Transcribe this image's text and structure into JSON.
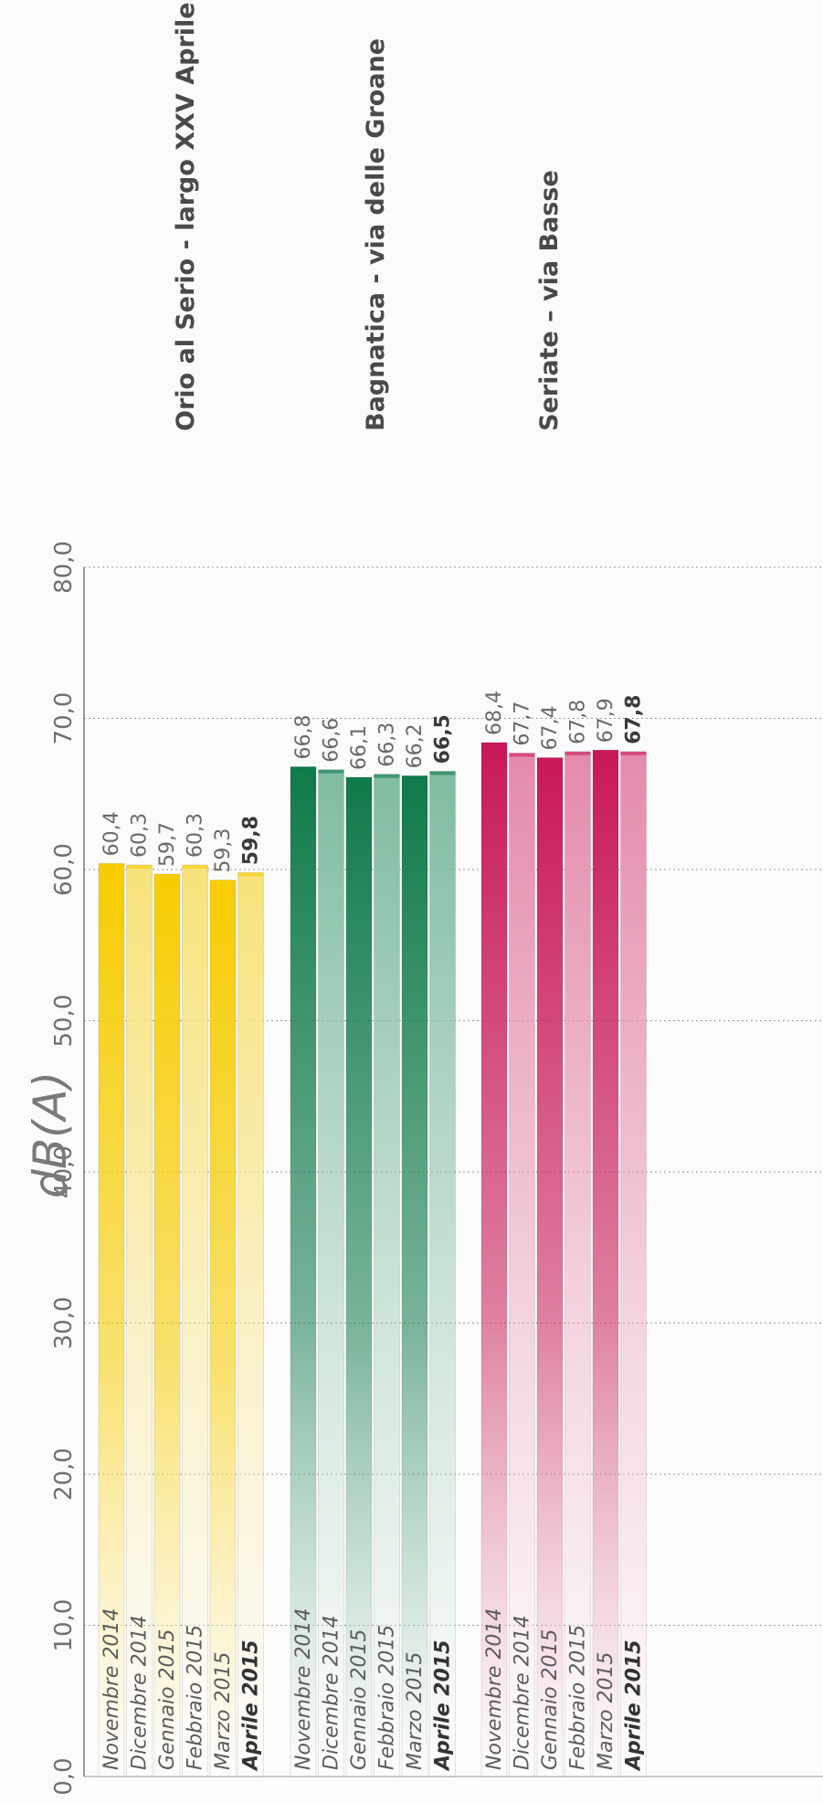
{
  "chart_data": {
    "type": "bar",
    "orientation": "horizontal",
    "ylabel": "dB(A)",
    "ylim": [
      0,
      80
    ],
    "ticks": [
      "0,0",
      "10,0",
      "20,0",
      "30,0",
      "40,0",
      "50,0",
      "60,0",
      "70,0",
      "80,0"
    ],
    "grid": true,
    "categories": [
      "Novembre 2014",
      "Dicembre 2014",
      "Gennaio 2015",
      "Febbraio 2015",
      "Marzo 2015",
      "Aprile 2015"
    ],
    "highlight_category": "Aprile 2015",
    "series": [
      {
        "name": "Orio al Serio - largo XXV Aprile",
        "values": [
          60.4,
          60.3,
          59.7,
          60.3,
          59.3,
          59.8
        ],
        "labels": [
          "60,4",
          "60,3",
          "59,7",
          "60,3",
          "59,3",
          "59,8"
        ],
        "colors": {
          "dark": "#f7cc00",
          "light": "#f7e27a"
        }
      },
      {
        "name": "Bagnatica - via delle Groane",
        "values": [
          66.8,
          66.6,
          66.1,
          66.3,
          66.2,
          66.5
        ],
        "labels": [
          "66,8",
          "66,6",
          "66,1",
          "66,3",
          "66,2",
          "66,5"
        ],
        "colors": {
          "dark": "#0f7a4a",
          "light": "#7fbca0"
        }
      },
      {
        "name": "Seriate – via Basse",
        "values": [
          68.4,
          67.7,
          67.4,
          67.8,
          67.9,
          67.8
        ],
        "labels": [
          "68,4",
          "67,7",
          "67,4",
          "67,8",
          "67,9",
          "67,8"
        ],
        "colors": {
          "dark": "#c8185a",
          "light": "#e48aac"
        }
      }
    ]
  }
}
